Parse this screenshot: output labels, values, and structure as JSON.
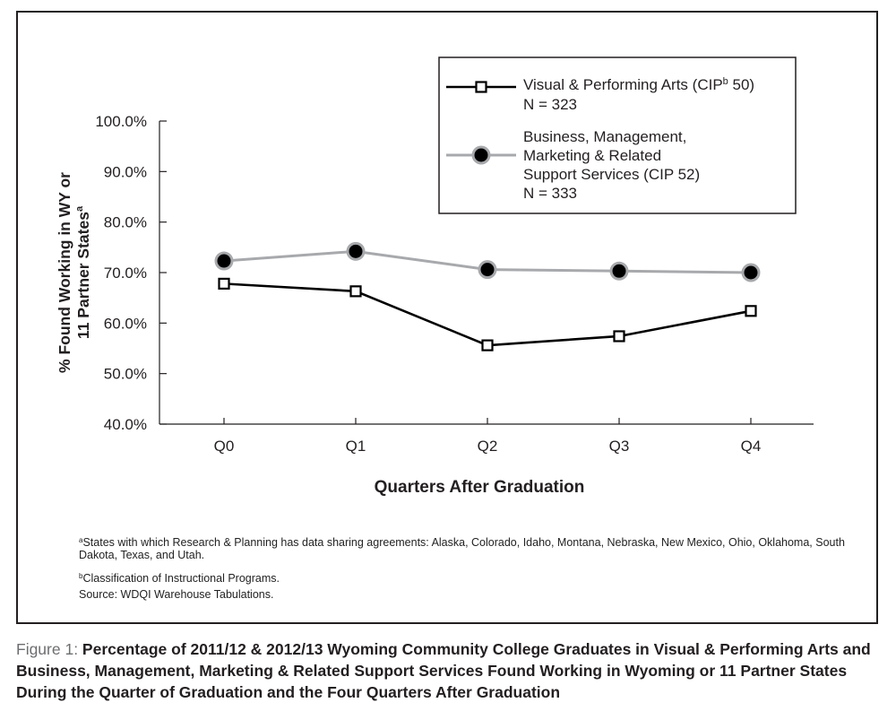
{
  "chart_data": {
    "type": "line",
    "categories": [
      "Q0",
      "Q1",
      "Q2",
      "Q3",
      "Q4"
    ],
    "series": [
      {
        "name": "Visual & Performing Arts (CIPb 50)",
        "n": "N = 323",
        "values": [
          67.8,
          66.3,
          55.6,
          57.4,
          62.4
        ],
        "color": "#000000",
        "marker": "square"
      },
      {
        "name": "Business, Management, Marketing & Related Support Services (CIP 52)",
        "n": "N = 333",
        "values": [
          72.3,
          74.2,
          70.6,
          70.3,
          70.0
        ],
        "color": "#a7a9ac",
        "marker": "circle"
      }
    ],
    "legend_lines": [
      [
        "Visual & Performing Arts (CIP",
        "b",
        " 50)",
        "N = 323"
      ],
      [
        "Business, Management,",
        "Marketing & Related",
        "Support Services (CIP 52)",
        "N = 333"
      ]
    ],
    "xlabel": "Quarters After Graduation",
    "ylabel_lines": [
      "% Found Working in WY or",
      "11 Partner States"
    ],
    "ylabel_sup": "a",
    "ylim": [
      40,
      100
    ],
    "yticks": [
      "40.0%",
      "50.0%",
      "60.0%",
      "70.0%",
      "80.0%",
      "90.0%",
      "100.0%"
    ],
    "legend_position": "top-right",
    "grid": false
  },
  "footnotes": {
    "a_sup": "a",
    "a_text": "States with which Research & Planning has data sharing agreements: Alaska, Colorado, Idaho, Montana, Nebraska, New Mexico, Ohio, Oklahoma, South Dakota, Texas, and Utah.",
    "b_sup": "b",
    "b_text": "Classification of Instructional Programs.",
    "source": "Source: WDQI Warehouse Tabulations."
  },
  "caption": {
    "label": "Figure 1:",
    "text": " Percentage of 2011/12 & 2012/13 Wyoming Community College Graduates in Visual & Performing Arts and  Business, Management, Marketing & Related Support Services Found Working in Wyoming or 11 Partner States During the Quarter of Graduation and the Four Quarters After Graduation"
  }
}
